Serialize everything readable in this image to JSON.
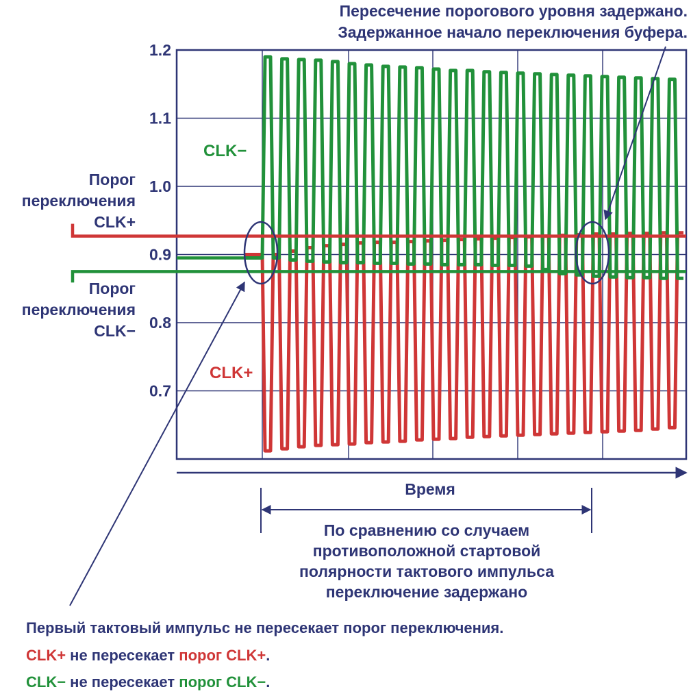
{
  "colors": {
    "axis": "#2e3575",
    "clk_plus": "#cf3636",
    "clk_minus": "#21913a",
    "annot": "#2e3575"
  },
  "top_note": [
    "Пересечение порогового уровня задержано.",
    "Задержанное начало переключения буфера."
  ],
  "threshold_plus_label": [
    "Порог",
    "переключения",
    "CLK+"
  ],
  "threshold_minus_label": [
    "Порог",
    "переключения",
    "CLK−"
  ],
  "series_label_minus": "CLK−",
  "series_label_plus": "CLK+",
  "time_label": "Время",
  "delay_note": [
    "По сравнению со случаем",
    "противоположной стартовой",
    "полярности тактового импульса",
    "переключение задержано"
  ],
  "bottom_note": {
    "line1": "Первый тактовый импульс не пересекает порог переключения.",
    "line2": {
      "a": "CLK+",
      "b": " не пересекает ",
      "c": "порог CLK+",
      "d": "."
    },
    "line3": {
      "a": "CLK−",
      "b": " не пересекает ",
      "c": "порог CLK−",
      "d": "."
    }
  },
  "chart_data": {
    "type": "line",
    "title": "",
    "xlabel": "Время",
    "ylabel": "",
    "ylim": [
      0.6,
      1.2
    ],
    "yticks": [
      0.7,
      0.8,
      0.9,
      1.0,
      1.1,
      1.2
    ],
    "ytick_labels": [
      "0.7",
      "0.8",
      "0.9",
      "1.0",
      "1.1",
      "1.2"
    ],
    "grid": true,
    "x_divisions": 6,
    "thresholds": {
      "CLK+": 0.927,
      "CLK−": 0.875
    },
    "cycles": 25,
    "series": [
      {
        "name": "CLK+",
        "high": [
          0.9,
          0.905,
          0.91,
          0.913,
          0.915,
          0.917,
          0.918,
          0.918,
          0.919,
          0.92,
          0.921,
          0.922,
          0.923,
          0.924,
          0.925,
          0.926,
          0.927,
          0.928,
          0.929,
          0.93,
          0.93,
          0.931,
          0.931,
          0.932,
          0.932
        ],
        "low": [
          0.612,
          0.615,
          0.618,
          0.62,
          0.621,
          0.622,
          0.624,
          0.625,
          0.626,
          0.628,
          0.629,
          0.63,
          0.632,
          0.633,
          0.634,
          0.635,
          0.636,
          0.637,
          0.638,
          0.639,
          0.64,
          0.641,
          0.642,
          0.644,
          0.646
        ]
      },
      {
        "name": "CLK−",
        "high": [
          1.19,
          1.187,
          1.186,
          1.185,
          1.183,
          1.18,
          1.178,
          1.176,
          1.175,
          1.174,
          1.172,
          1.17,
          1.17,
          1.168,
          1.167,
          1.166,
          1.165,
          1.164,
          1.163,
          1.162,
          1.161,
          1.16,
          1.159,
          1.158,
          1.157
        ],
        "low": [
          0.895,
          0.892,
          0.89,
          0.889,
          0.888,
          0.888,
          0.887,
          0.887,
          0.886,
          0.886,
          0.885,
          0.885,
          0.885,
          0.884,
          0.884,
          0.883,
          0.878,
          0.872,
          0.87,
          0.868,
          0.867,
          0.866,
          0.866,
          0.865,
          0.865
        ]
      }
    ]
  }
}
